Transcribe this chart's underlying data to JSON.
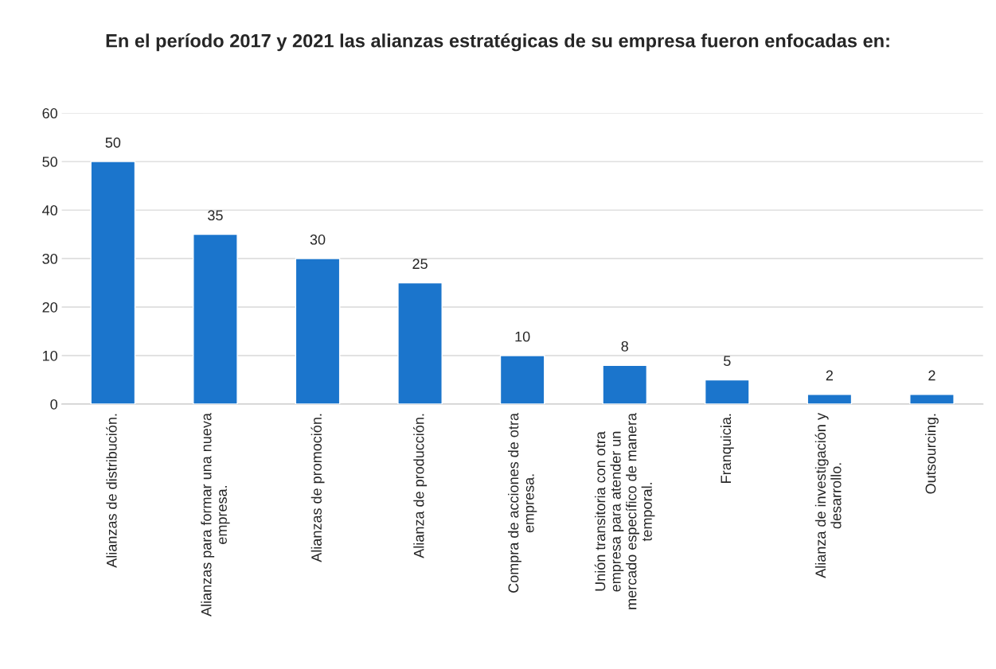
{
  "chart_data": {
    "type": "bar",
    "title": "En el período 2017 y 2021 las alianzas estratégicas de su empresa fueron enfocadas en:",
    "categories": [
      "Alianzas de distribución.",
      "Alianzas para formar una nueva empresa.",
      "Alianzas de promoción.",
      "Alianza de producción.",
      "Compra de acciones de otra empresa.",
      "Unión transitoria con otra empresa para atender un mercado específico de manera temporal.",
      "Franquicia.",
      "Alianza de investigación y desarrollo.",
      "Outsourcing."
    ],
    "values": [
      50,
      35,
      30,
      25,
      10,
      8,
      5,
      2,
      2
    ],
    "color": "#1b75cc",
    "ylim": [
      0,
      60
    ],
    "yticks": [
      0,
      10,
      20,
      30,
      40,
      50,
      60
    ],
    "grid": "y",
    "data_labels": true
  }
}
